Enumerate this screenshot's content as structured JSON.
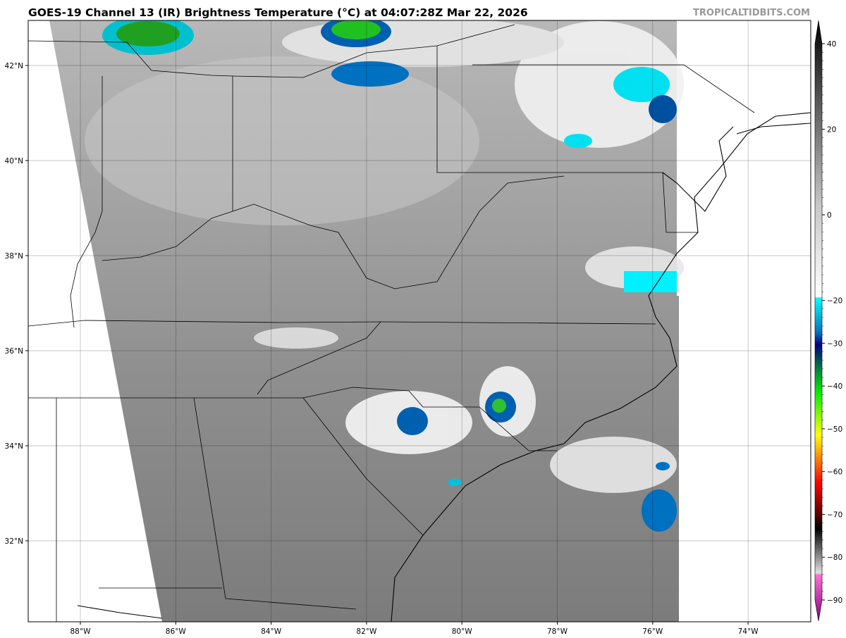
{
  "title": "GOES-19 Channel 13 (IR) Brightness Temperature (°C) at 04:07:28Z Mar 22, 2026",
  "credit": "TROPICALTIDBITS.COM",
  "map": {
    "longitude_labels": [
      "88°W",
      "86°W",
      "84°W",
      "82°W",
      "80°W",
      "78°W",
      "76°W",
      "74°W"
    ],
    "latitude_labels": [
      "42°N",
      "40°N",
      "38°N",
      "36°N",
      "34°N",
      "32°N"
    ],
    "gridlines": true
  },
  "colorbar": {
    "units": "°C",
    "range": [
      -90,
      40
    ],
    "tick_labels": [
      "40",
      "20",
      "0",
      "−20",
      "−30",
      "−40",
      "−50",
      "−60",
      "−70",
      "−80",
      "−90"
    ],
    "tick_values": [
      40,
      20,
      0,
      -20,
      -30,
      -40,
      -50,
      -60,
      -70,
      -80,
      -90
    ],
    "colors": {
      "warm": "#000000",
      "zero": "#c8c8c8",
      "cold_start": "#00ffff",
      "blue": "#0060c0",
      "navy": "#000080",
      "green": "#00e000",
      "yellow": "#ffff00",
      "orange": "#ff8000",
      "red": "#ff0000",
      "darkred": "#600000",
      "pink": "#ff70d0",
      "purple": "#800080"
    }
  }
}
